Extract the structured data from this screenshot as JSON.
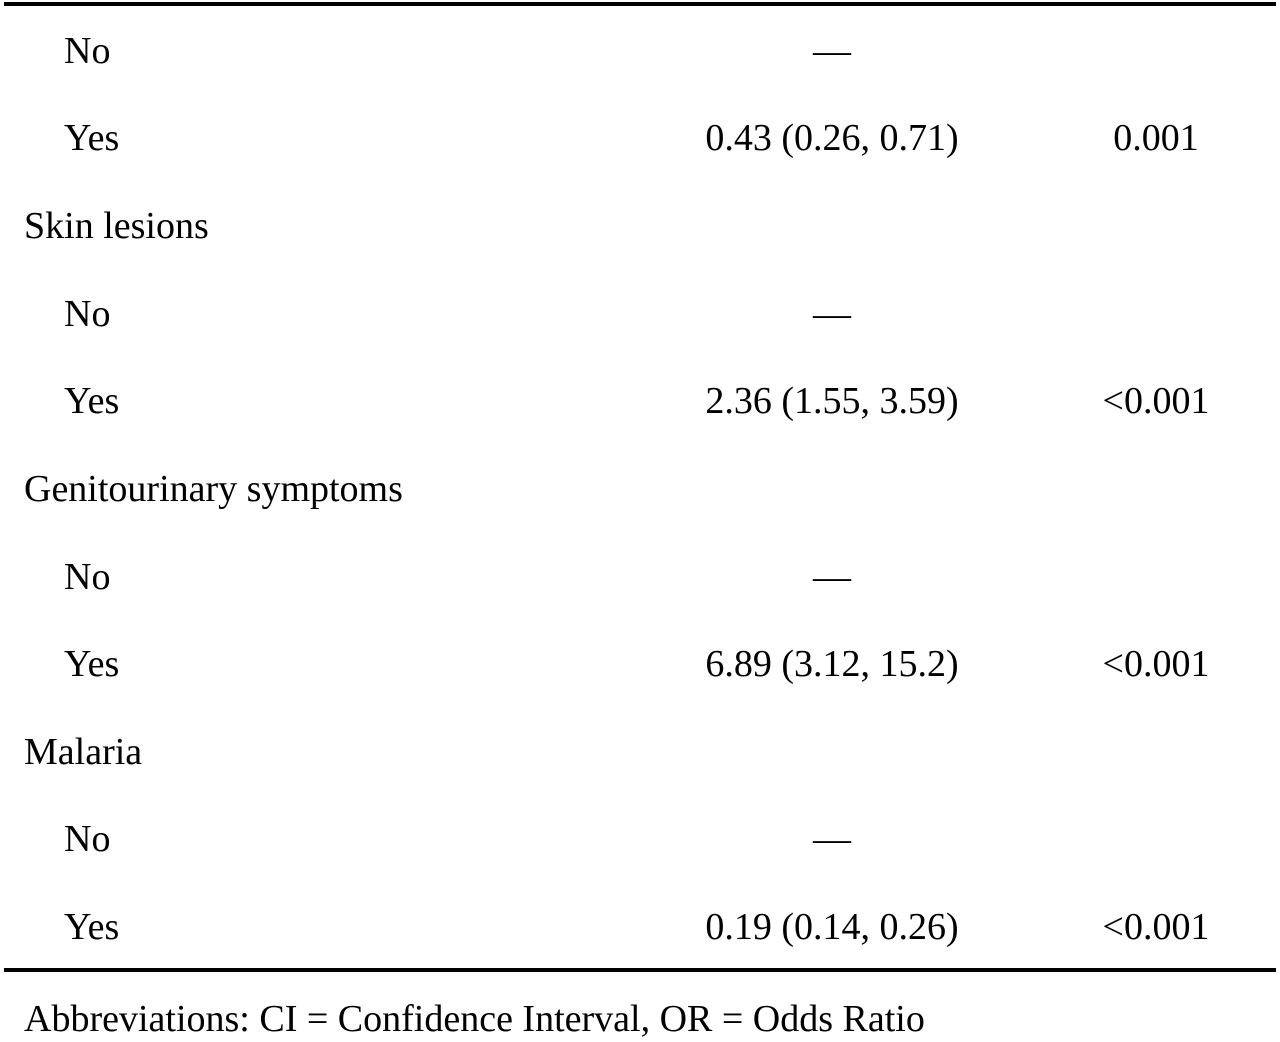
{
  "table": {
    "rows": [
      {
        "label": "No",
        "level": 1,
        "or_ci": "—",
        "p": ""
      },
      {
        "label": "Yes",
        "level": 1,
        "or_ci": "0.43 (0.26, 0.71)",
        "p": "0.001"
      },
      {
        "label": "Skin lesions",
        "level": 0,
        "or_ci": "",
        "p": ""
      },
      {
        "label": "No",
        "level": 1,
        "or_ci": "—",
        "p": ""
      },
      {
        "label": "Yes",
        "level": 1,
        "or_ci": "2.36 (1.55, 3.59)",
        "p": "<0.001"
      },
      {
        "label": "Genitourinary symptoms",
        "level": 0,
        "or_ci": "",
        "p": ""
      },
      {
        "label": "No",
        "level": 1,
        "or_ci": "—",
        "p": ""
      },
      {
        "label": "Yes",
        "level": 1,
        "or_ci": "6.89 (3.12, 15.2)",
        "p": "<0.001"
      },
      {
        "label": "Malaria",
        "level": 0,
        "or_ci": "",
        "p": ""
      },
      {
        "label": "No",
        "level": 1,
        "or_ci": "—",
        "p": ""
      },
      {
        "label": "Yes",
        "level": 1,
        "or_ci": "0.19 (0.14, 0.26)",
        "p": "<0.001"
      }
    ]
  },
  "footnote": "Abbreviations: CI = Confidence Interval, OR = Odds Ratio"
}
